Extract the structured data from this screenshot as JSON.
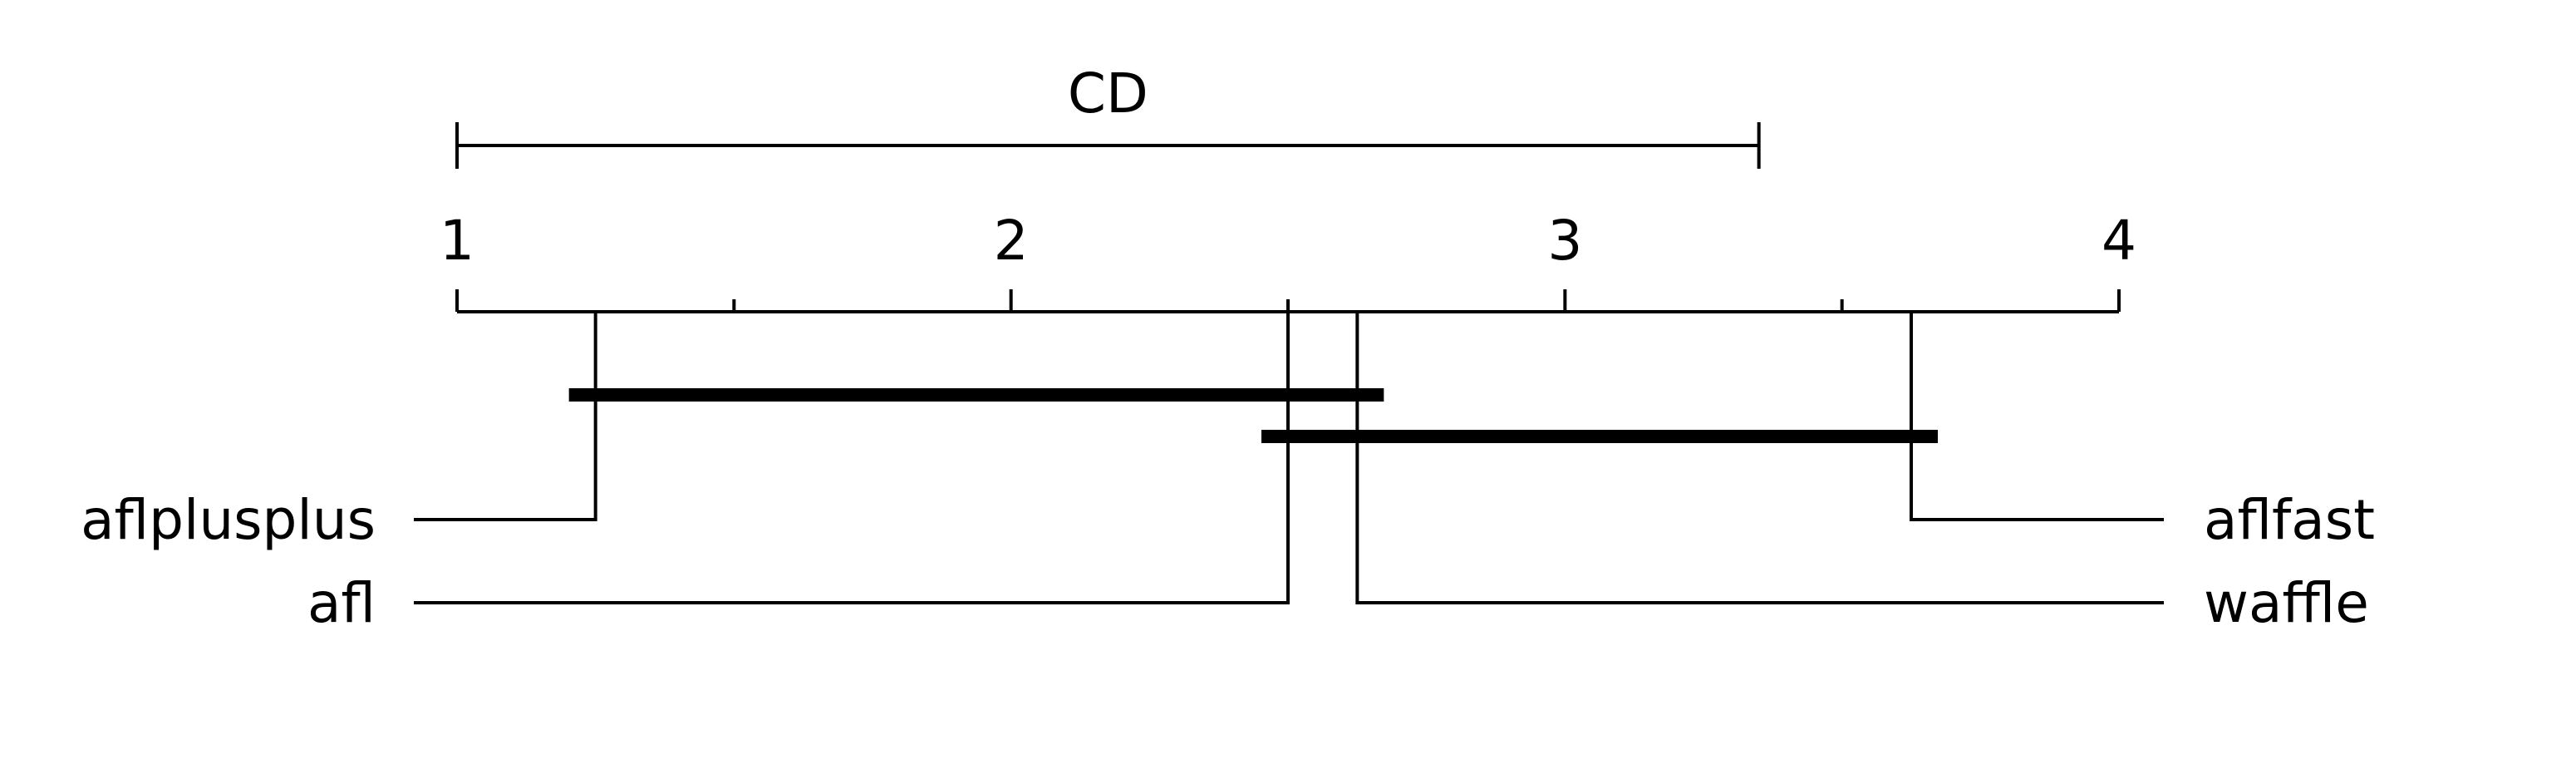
{
  "chart_data": {
    "type": "critical-difference",
    "axis": {
      "min": 1,
      "max": 4,
      "major_ticks": [
        1,
        2,
        3,
        4
      ],
      "tick_labels": [
        "1",
        "2",
        "3",
        "4"
      ],
      "minor_ticks": [
        1.5,
        2.5,
        3.5
      ]
    },
    "cd": {
      "label": "CD",
      "start": 1,
      "end": 3.35
    },
    "methods": [
      {
        "name": "aflplusplus",
        "rank": 1.25,
        "side": "left"
      },
      {
        "name": "afl",
        "rank": 2.5,
        "side": "left"
      },
      {
        "name": "waffle",
        "rank": 2.625,
        "side": "right"
      },
      {
        "name": "aflfast",
        "rank": 3.625,
        "side": "right"
      }
    ],
    "cliques": [
      {
        "members": [
          "aflplusplus",
          "afl",
          "waffle"
        ],
        "start": 1.25,
        "end": 2.625
      },
      {
        "members": [
          "afl",
          "waffle",
          "aflfast"
        ],
        "start": 2.5,
        "end": 3.625
      }
    ],
    "colors": {
      "line": "#000000",
      "background": "#ffffff"
    }
  }
}
